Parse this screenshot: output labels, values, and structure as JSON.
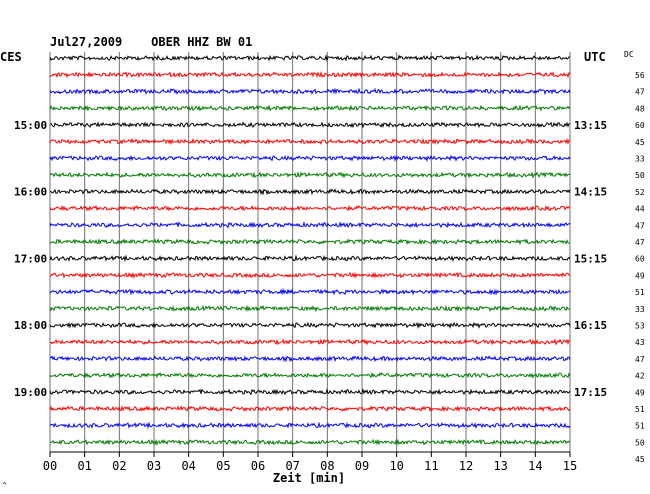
{
  "chart_data": {
    "type": "line",
    "title": "Jul27,2009    OBER HHZ BW 01",
    "left_zone": "CES",
    "right_zone": "UTC",
    "dc_label": "DC",
    "xlabel": "Zeit [min]",
    "xlim": [
      0,
      15
    ],
    "x_ticks": [
      "00",
      "01",
      "02",
      "03",
      "04",
      "05",
      "06",
      "07",
      "08",
      "09",
      "10",
      "11",
      "12",
      "13",
      "14",
      "15"
    ],
    "grid": true,
    "trace_colors": [
      "#000000",
      "#ff0000",
      "#0000ff",
      "#007a00"
    ],
    "left_hour_labels": [
      {
        "trace": 4,
        "text": "15:00"
      },
      {
        "trace": 8,
        "text": "16:00"
      },
      {
        "trace": 12,
        "text": "17:00"
      },
      {
        "trace": 16,
        "text": "18:00"
      },
      {
        "trace": 20,
        "text": "19:00"
      }
    ],
    "right_hour_labels": [
      {
        "trace": 4,
        "text": "13:15"
      },
      {
        "trace": 8,
        "text": "14:15"
      },
      {
        "trace": 12,
        "text": "15:15"
      },
      {
        "trace": 16,
        "text": "16:15"
      },
      {
        "trace": 20,
        "text": "17:15"
      }
    ],
    "dc_values": [
      "56",
      "47",
      "48",
      "60",
      "45",
      "33",
      "50",
      "52",
      "44",
      "47",
      "47",
      "60",
      "49",
      "51",
      "33",
      "53",
      "43",
      "47",
      "42",
      "49",
      "51",
      "51",
      "50",
      "45"
    ],
    "corner_mark": "^",
    "traces": 24
  }
}
